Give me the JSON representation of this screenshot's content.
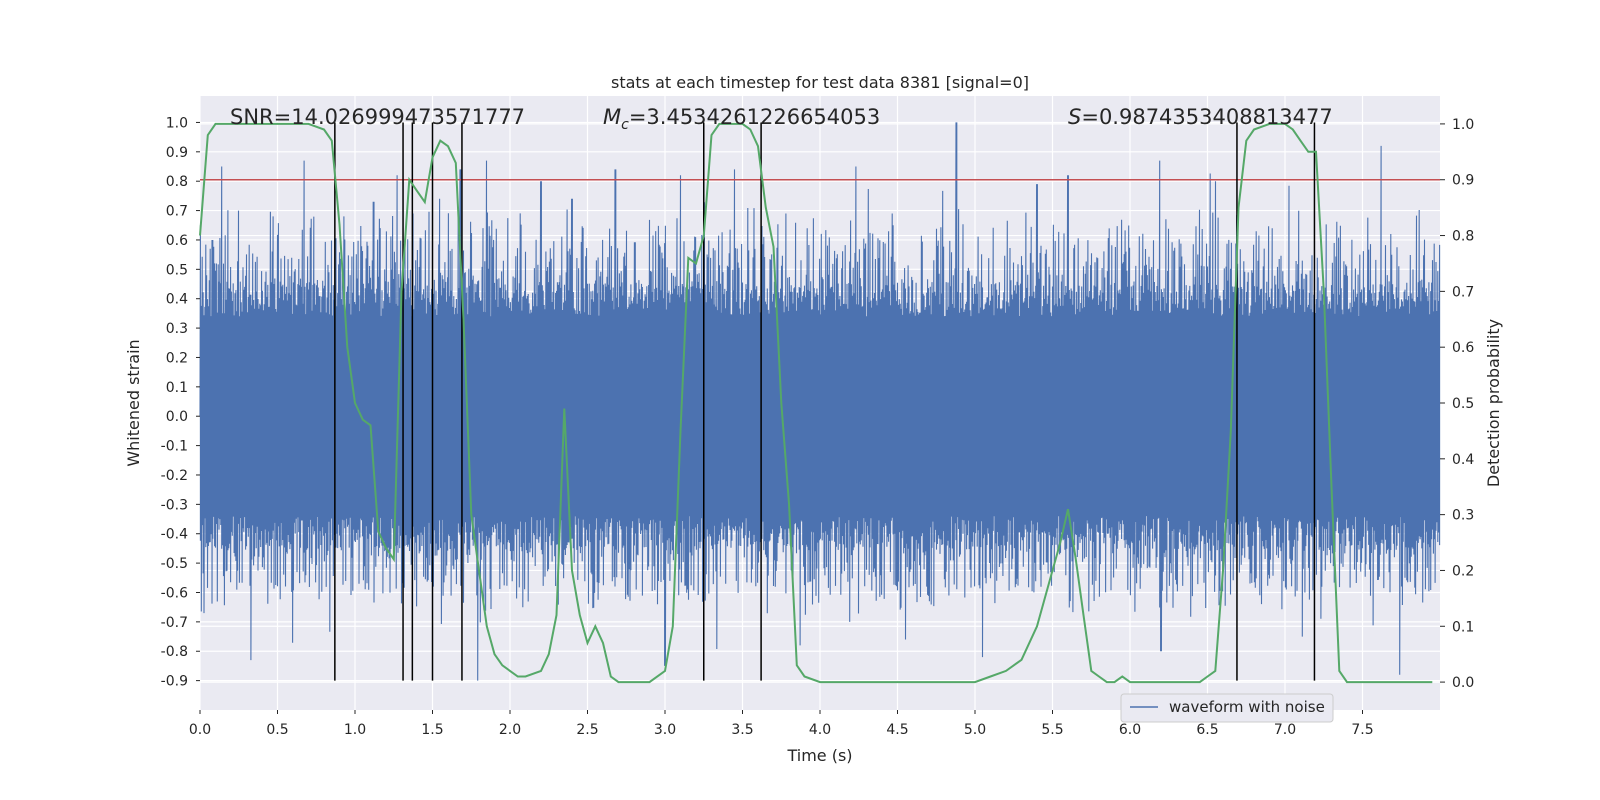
{
  "chart_data": {
    "type": "line",
    "title": "stats at each timestep for test data 8381 [signal=0]",
    "xlabel": "Time (s)",
    "ylabel": "Whitened strain",
    "y2label": "Detection probability",
    "xlim": [
      0.0,
      8.0
    ],
    "ylim": [
      -1.0,
      1.09
    ],
    "y2lim": [
      -0.05,
      1.05
    ],
    "xticks": [
      0.0,
      0.5,
      1.0,
      1.5,
      2.0,
      2.5,
      3.0,
      3.5,
      4.0,
      4.5,
      5.0,
      5.5,
      6.0,
      6.5,
      7.0,
      7.5
    ],
    "yticks": [
      -0.9,
      -0.8,
      -0.7,
      -0.6,
      -0.5,
      -0.4,
      -0.3,
      -0.2,
      -0.1,
      0.0,
      0.1,
      0.2,
      0.3,
      0.4,
      0.5,
      0.6,
      0.7,
      0.8,
      0.9,
      1.0
    ],
    "y2ticks": [
      0.0,
      0.1,
      0.2,
      0.3,
      0.4,
      0.5,
      0.6,
      0.7,
      0.8,
      0.9,
      1.0
    ],
    "annotations": {
      "snr": "SNR=14.026999473571777",
      "mc_symbol": "M",
      "mc_sub": "c",
      "mc_value": "=3.4534261226654053",
      "s_symbol": "S",
      "s_value": "=0.9874353408813477"
    },
    "legend": {
      "label": "waveform with noise",
      "location": "lower-right"
    },
    "threshold": {
      "value": 0.9,
      "axis": "y2",
      "color": "#c44e52"
    },
    "vlines": [
      0.87,
      1.31,
      1.37,
      1.5,
      1.69,
      3.25,
      3.62,
      6.69,
      7.19
    ],
    "vline_range": [
      -0.9,
      1.0
    ],
    "waveform": {
      "name": "waveform with noise",
      "color": "#4c72b0",
      "envelope_core": 0.34,
      "peaks": [
        {
          "x": 0.08,
          "y": 0.6
        },
        {
          "x": 0.14,
          "y": 0.85
        },
        {
          "x": 0.25,
          "y": 0.7
        },
        {
          "x": 0.33,
          "y": -0.83
        },
        {
          "x": 0.47,
          "y": 0.68
        },
        {
          "x": 0.67,
          "y": 0.87
        },
        {
          "x": 0.93,
          "y": 0.68
        },
        {
          "x": 1.12,
          "y": 0.73
        },
        {
          "x": 1.27,
          "y": 0.82
        },
        {
          "x": 1.68,
          "y": 0.84
        },
        {
          "x": 1.85,
          "y": 0.87
        },
        {
          "x": 1.79,
          "y": -0.9
        },
        {
          "x": 2.2,
          "y": 0.8
        },
        {
          "x": 2.4,
          "y": 0.74
        },
        {
          "x": 2.68,
          "y": 0.84
        },
        {
          "x": 3.0,
          "y": -0.85
        },
        {
          "x": 3.1,
          "y": 0.82
        },
        {
          "x": 3.45,
          "y": 0.84
        },
        {
          "x": 3.78,
          "y": 0.69
        },
        {
          "x": 3.87,
          "y": -0.78
        },
        {
          "x": 4.23,
          "y": 0.85
        },
        {
          "x": 4.55,
          "y": -0.76
        },
        {
          "x": 4.88,
          "y": 1.0
        },
        {
          "x": 5.05,
          "y": -0.82
        },
        {
          "x": 5.4,
          "y": 0.79
        },
        {
          "x": 5.6,
          "y": 0.82
        },
        {
          "x": 6.19,
          "y": 0.87
        },
        {
          "x": 6.2,
          "y": -0.8
        },
        {
          "x": 6.55,
          "y": 0.8
        },
        {
          "x": 7.11,
          "y": -0.75
        },
        {
          "x": 7.62,
          "y": 0.92
        },
        {
          "x": 7.74,
          "y": -0.88
        }
      ]
    },
    "probability": {
      "name": "detection probability",
      "color": "#55a868",
      "x": [
        0.0,
        0.05,
        0.1,
        0.15,
        0.2,
        0.3,
        0.4,
        0.5,
        0.6,
        0.7,
        0.8,
        0.85,
        0.9,
        0.95,
        1.0,
        1.05,
        1.1,
        1.15,
        1.2,
        1.25,
        1.3,
        1.35,
        1.4,
        1.45,
        1.5,
        1.55,
        1.6,
        1.65,
        1.7,
        1.75,
        1.8,
        1.85,
        1.9,
        1.95,
        2.0,
        2.05,
        2.1,
        2.2,
        2.25,
        2.3,
        2.35,
        2.4,
        2.45,
        2.5,
        2.55,
        2.6,
        2.65,
        2.7,
        2.75,
        2.8,
        2.9,
        3.0,
        3.05,
        3.1,
        3.15,
        3.2,
        3.25,
        3.3,
        3.35,
        3.4,
        3.45,
        3.5,
        3.55,
        3.6,
        3.65,
        3.7,
        3.75,
        3.8,
        3.85,
        3.9,
        4.0,
        4.1,
        4.2,
        4.3,
        4.4,
        4.5,
        4.6,
        4.7,
        4.8,
        4.9,
        5.0,
        5.1,
        5.2,
        5.25,
        5.3,
        5.4,
        5.5,
        5.55,
        5.6,
        5.65,
        5.7,
        5.75,
        5.8,
        5.85,
        5.9,
        5.95,
        6.0,
        6.1,
        6.2,
        6.3,
        6.4,
        6.45,
        6.5,
        6.55,
        6.6,
        6.65,
        6.7,
        6.75,
        6.8,
        6.9,
        7.0,
        7.05,
        7.1,
        7.15,
        7.2,
        7.25,
        7.3,
        7.35,
        7.4,
        7.5,
        7.6,
        7.7,
        7.8,
        7.9,
        7.95
      ],
      "y": [
        0.8,
        0.98,
        1.0,
        1.0,
        1.0,
        1.0,
        1.0,
        1.0,
        1.0,
        1.0,
        0.99,
        0.97,
        0.82,
        0.6,
        0.5,
        0.47,
        0.46,
        0.27,
        0.24,
        0.22,
        0.7,
        0.9,
        0.88,
        0.86,
        0.94,
        0.97,
        0.96,
        0.93,
        0.65,
        0.3,
        0.2,
        0.1,
        0.05,
        0.03,
        0.02,
        0.01,
        0.01,
        0.02,
        0.05,
        0.12,
        0.49,
        0.2,
        0.12,
        0.07,
        0.1,
        0.07,
        0.01,
        0.0,
        0.0,
        0.0,
        0.0,
        0.02,
        0.1,
        0.45,
        0.76,
        0.75,
        0.8,
        0.98,
        1.0,
        1.0,
        1.0,
        1.0,
        0.99,
        0.96,
        0.85,
        0.78,
        0.5,
        0.32,
        0.03,
        0.01,
        0.0,
        0.0,
        0.0,
        0.0,
        0.0,
        0.0,
        0.0,
        0.0,
        0.0,
        0.0,
        0.0,
        0.01,
        0.02,
        0.03,
        0.04,
        0.1,
        0.2,
        0.25,
        0.31,
        0.22,
        0.12,
        0.02,
        0.01,
        0.0,
        0.0,
        0.01,
        0.0,
        0.0,
        0.0,
        0.0,
        0.0,
        0.0,
        0.01,
        0.02,
        0.2,
        0.45,
        0.85,
        0.97,
        0.99,
        1.0,
        1.0,
        0.99,
        0.97,
        0.95,
        0.95,
        0.7,
        0.35,
        0.02,
        0.0,
        0.0,
        0.0,
        0.0,
        0.0,
        0.0,
        0.0
      ]
    }
  }
}
